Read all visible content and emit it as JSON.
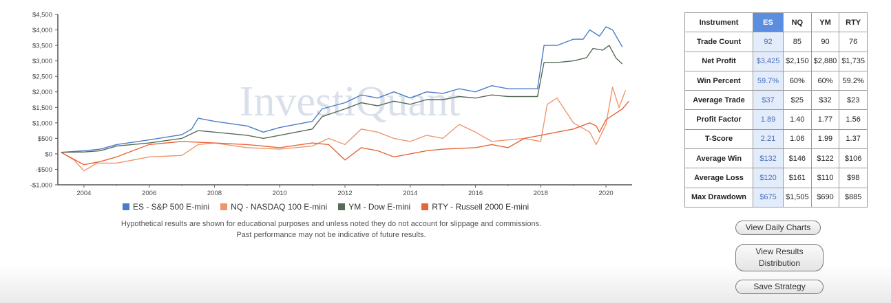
{
  "chart_data": {
    "type": "line",
    "watermark": "InvestiQuant",
    "ylim": [
      -1000,
      4500
    ],
    "xlim": [
      2003.2,
      2020.8
    ],
    "y_ticks": [
      {
        "v": 4500,
        "label": "$4,500"
      },
      {
        "v": 4000,
        "label": "$4,000"
      },
      {
        "v": 3500,
        "label": "$3,500"
      },
      {
        "v": 3000,
        "label": "$3,000"
      },
      {
        "v": 2500,
        "label": "$2,500"
      },
      {
        "v": 2000,
        "label": "$2,000"
      },
      {
        "v": 1500,
        "label": "$1,500"
      },
      {
        "v": 1000,
        "label": "$1,000"
      },
      {
        "v": 500,
        "label": "$500"
      },
      {
        "v": 0,
        "label": "$0"
      },
      {
        "v": -500,
        "label": "-$500"
      },
      {
        "v": -1000,
        "label": "-$1,000"
      }
    ],
    "x_ticks": [
      {
        "v": 2004,
        "label": "2004"
      },
      {
        "v": 2006,
        "label": "2006"
      },
      {
        "v": 2008,
        "label": "2008"
      },
      {
        "v": 2010,
        "label": "2010"
      },
      {
        "v": 2012,
        "label": "2012"
      },
      {
        "v": 2014,
        "label": "2014"
      },
      {
        "v": 2016,
        "label": "2016"
      },
      {
        "v": 2018,
        "label": "2018"
      },
      {
        "v": 2020,
        "label": "2020"
      }
    ],
    "series": [
      {
        "name": "ES - S&P 500 E-mini",
        "color": "#4a7cc7",
        "points": [
          [
            2003.3,
            50
          ],
          [
            2004,
            100
          ],
          [
            2004.5,
            150
          ],
          [
            2005,
            300
          ],
          [
            2006,
            450
          ],
          [
            2007,
            620
          ],
          [
            2007.3,
            800
          ],
          [
            2007.5,
            1150
          ],
          [
            2008,
            1050
          ],
          [
            2009,
            900
          ],
          [
            2009.5,
            700
          ],
          [
            2010,
            850
          ],
          [
            2011,
            1050
          ],
          [
            2011.3,
            1450
          ],
          [
            2012,
            1650
          ],
          [
            2012.5,
            1900
          ],
          [
            2013,
            1800
          ],
          [
            2013.5,
            2000
          ],
          [
            2014,
            1800
          ],
          [
            2014.5,
            2000
          ],
          [
            2015,
            1950
          ],
          [
            2015.5,
            2100
          ],
          [
            2016,
            2000
          ],
          [
            2016.5,
            2200
          ],
          [
            2017,
            2100
          ],
          [
            2017.5,
            2100
          ],
          [
            2017.9,
            2100
          ],
          [
            2018.1,
            3500
          ],
          [
            2018.5,
            3500
          ],
          [
            2019,
            3700
          ],
          [
            2019.3,
            3700
          ],
          [
            2019.5,
            4000
          ],
          [
            2019.8,
            3800
          ],
          [
            2020,
            4100
          ],
          [
            2020.2,
            4000
          ],
          [
            2020.5,
            3450
          ]
        ]
      },
      {
        "name": "NQ - NASDAQ 100 E-mini",
        "color": "#f0956a",
        "points": [
          [
            2003.3,
            50
          ],
          [
            2003.7,
            -200
          ],
          [
            2004,
            -550
          ],
          [
            2004.4,
            -300
          ],
          [
            2005,
            -300
          ],
          [
            2005.5,
            -200
          ],
          [
            2006,
            -100
          ],
          [
            2007,
            -50
          ],
          [
            2007.5,
            300
          ],
          [
            2008,
            350
          ],
          [
            2009,
            200
          ],
          [
            2010,
            150
          ],
          [
            2011,
            250
          ],
          [
            2011.5,
            500
          ],
          [
            2012,
            300
          ],
          [
            2012.5,
            800
          ],
          [
            2013,
            700
          ],
          [
            2013.5,
            500
          ],
          [
            2014,
            400
          ],
          [
            2014.5,
            600
          ],
          [
            2015,
            500
          ],
          [
            2015.5,
            950
          ],
          [
            2016,
            700
          ],
          [
            2016.5,
            400
          ],
          [
            2017,
            450
          ],
          [
            2017.5,
            500
          ],
          [
            2018,
            400
          ],
          [
            2018.2,
            1600
          ],
          [
            2018.5,
            1800
          ],
          [
            2019,
            1000
          ],
          [
            2019.5,
            700
          ],
          [
            2019.7,
            300
          ],
          [
            2020,
            950
          ],
          [
            2020.2,
            2150
          ],
          [
            2020.4,
            1500
          ],
          [
            2020.6,
            2050
          ]
        ]
      },
      {
        "name": "YM - Dow E-mini",
        "color": "#556b55",
        "points": [
          [
            2003.3,
            50
          ],
          [
            2004,
            60
          ],
          [
            2004.5,
            100
          ],
          [
            2005,
            250
          ],
          [
            2006,
            350
          ],
          [
            2007,
            500
          ],
          [
            2007.5,
            750
          ],
          [
            2008,
            700
          ],
          [
            2009,
            600
          ],
          [
            2009.5,
            500
          ],
          [
            2010,
            600
          ],
          [
            2011,
            800
          ],
          [
            2011.3,
            1200
          ],
          [
            2012,
            1450
          ],
          [
            2012.5,
            1650
          ],
          [
            2013,
            1550
          ],
          [
            2013.5,
            1700
          ],
          [
            2014,
            1600
          ],
          [
            2014.5,
            1750
          ],
          [
            2015,
            1750
          ],
          [
            2015.5,
            1850
          ],
          [
            2016,
            1800
          ],
          [
            2016.5,
            1900
          ],
          [
            2017,
            1850
          ],
          [
            2017.5,
            1850
          ],
          [
            2017.9,
            1850
          ],
          [
            2018.1,
            2950
          ],
          [
            2018.5,
            2950
          ],
          [
            2019,
            3000
          ],
          [
            2019.4,
            3100
          ],
          [
            2019.6,
            3400
          ],
          [
            2019.9,
            3350
          ],
          [
            2020.1,
            3500
          ],
          [
            2020.3,
            3100
          ],
          [
            2020.5,
            2900
          ]
        ]
      },
      {
        "name": "RTY - Russell 2000 E-mini",
        "color": "#e8643a",
        "points": [
          [
            2003.3,
            50
          ],
          [
            2004,
            -350
          ],
          [
            2004.5,
            -250
          ],
          [
            2005,
            -100
          ],
          [
            2006,
            300
          ],
          [
            2007,
            400
          ],
          [
            2008,
            350
          ],
          [
            2009,
            300
          ],
          [
            2010,
            200
          ],
          [
            2011,
            350
          ],
          [
            2011.5,
            300
          ],
          [
            2012,
            -200
          ],
          [
            2012.5,
            200
          ],
          [
            2013,
            100
          ],
          [
            2013.5,
            -100
          ],
          [
            2014,
            0
          ],
          [
            2014.5,
            100
          ],
          [
            2015,
            150
          ],
          [
            2016,
            200
          ],
          [
            2016.5,
            300
          ],
          [
            2017,
            200
          ],
          [
            2017.5,
            500
          ],
          [
            2018,
            600
          ],
          [
            2018.5,
            700
          ],
          [
            2019,
            800
          ],
          [
            2019.5,
            1000
          ],
          [
            2019.7,
            900
          ],
          [
            2019.8,
            700
          ],
          [
            2020,
            1100
          ],
          [
            2020.5,
            1450
          ],
          [
            2020.7,
            1700
          ]
        ]
      }
    ]
  },
  "disclaimer": {
    "line1": "Hypothetical results are shown for educational purposes and unless noted they do not account for slippage and commissions.",
    "line2": "Past performance may not be indicative of future results."
  },
  "table": {
    "header": {
      "instrument": "Instrument",
      "es": "ES",
      "nq": "NQ",
      "ym": "YM",
      "rty": "RTY"
    },
    "rows": [
      {
        "label": "Trade Count",
        "es": "92",
        "nq": "85",
        "ym": "90",
        "rty": "76"
      },
      {
        "label": "Net Profit",
        "es": "$3,425",
        "nq": "$2,150",
        "ym": "$2,880",
        "rty": "$1,735"
      },
      {
        "label": "Win Percent",
        "es": "59.7%",
        "nq": "60%",
        "ym": "60%",
        "rty": "59.2%"
      },
      {
        "label": "Average Trade",
        "es": "$37",
        "nq": "$25",
        "ym": "$32",
        "rty": "$23"
      },
      {
        "label": "Profit Factor",
        "es": "1.89",
        "nq": "1.40",
        "ym": "1.77",
        "rty": "1.56"
      },
      {
        "label": "T-Score",
        "es": "2.21",
        "nq": "1.06",
        "ym": "1.99",
        "rty": "1.37"
      },
      {
        "label": "Average Win",
        "es": "$132",
        "nq": "$146",
        "ym": "$122",
        "rty": "$106"
      },
      {
        "label": "Average Loss",
        "es": "$120",
        "nq": "$161",
        "ym": "$110",
        "rty": "$98"
      },
      {
        "label": "Max Drawdown",
        "es": "$675",
        "nq": "$1,505",
        "ym": "$690",
        "rty": "$885"
      }
    ]
  },
  "buttons": {
    "daily": "View Daily Charts",
    "dist_line1": "View Results",
    "dist_line2": "Distribution",
    "save": "Save Strategy"
  }
}
